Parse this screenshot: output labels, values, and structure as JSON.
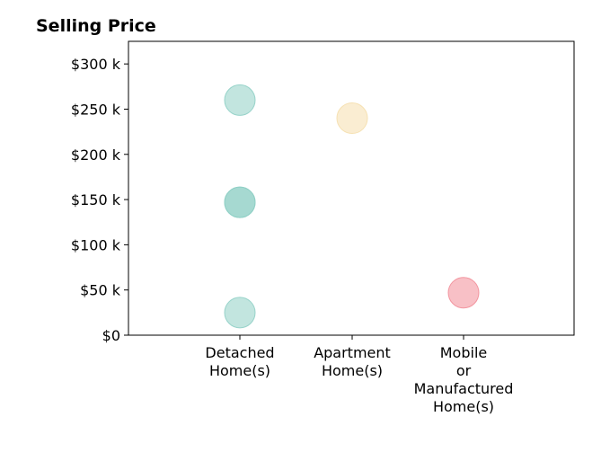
{
  "chart_data": {
    "type": "scatter",
    "title": "Selling Price",
    "xlabel": "",
    "ylabel": "",
    "categories": [
      [
        "Detached",
        "Home(s)"
      ],
      [
        "Apartment",
        "Home(s)"
      ],
      [
        "Mobile",
        "or",
        "Manufactured",
        "Home(s)"
      ]
    ],
    "ylim": [
      0,
      325000
    ],
    "yticks": [
      0,
      50000,
      100000,
      150000,
      200000,
      250000,
      300000
    ],
    "ytick_labels": [
      "$0",
      "$50 k",
      "$100 k",
      "$150 k",
      "$200 k",
      "$250 k",
      "$300 k"
    ],
    "grid": false,
    "points": [
      {
        "category_index": 0,
        "y": 260000,
        "color": "#8fcfc5"
      },
      {
        "category_index": 0,
        "y": 147000,
        "color": "#8fcfc5"
      },
      {
        "category_index": 0,
        "y": 147000,
        "color": "#8fcfc5"
      },
      {
        "category_index": 0,
        "y": 25000,
        "color": "#8fcfc5"
      },
      {
        "category_index": 1,
        "y": 240000,
        "color": "#f5dfad"
      },
      {
        "category_index": 2,
        "y": 47000,
        "color": "#f28d98"
      }
    ],
    "point_opacity": 0.55
  }
}
